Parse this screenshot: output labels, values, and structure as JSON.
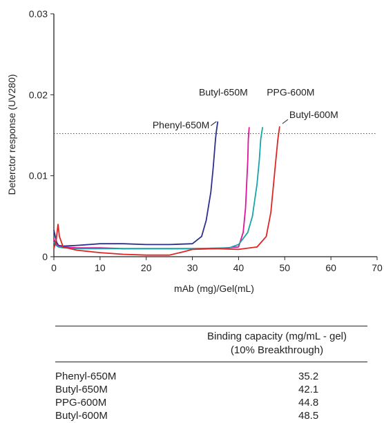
{
  "chart_data": {
    "type": "line",
    "xlabel": "mAb (mg)/Gel(mL)",
    "ylabel": "Deterctor response (UV280)",
    "xlim": [
      0,
      70
    ],
    "ylim": [
      0,
      0.03
    ],
    "xticks": [
      0,
      10,
      20,
      30,
      40,
      50,
      60,
      70
    ],
    "yticks": [
      0,
      0.01,
      0.02,
      0.03
    ],
    "ytick_labels": [
      "0",
      "0.01",
      "0.02",
      "0.03"
    ],
    "grid": false,
    "reference_line": {
      "y": 0.0152,
      "style": "dotted"
    },
    "series": [
      {
        "name": "Phenyl-650M",
        "color": "#2b2f8f",
        "x": [
          0,
          0.3,
          0.6,
          1,
          2,
          5,
          10,
          15,
          20,
          25,
          30,
          32,
          33,
          34,
          34.5,
          35,
          35.2,
          35.5
        ],
        "y": [
          0.0033,
          0.0025,
          0.0018,
          0.0014,
          0.0013,
          0.0014,
          0.0016,
          0.0016,
          0.0015,
          0.0015,
          0.0016,
          0.0025,
          0.0045,
          0.008,
          0.011,
          0.0145,
          0.0155,
          0.0167
        ]
      },
      {
        "name": "Butyl-650M",
        "color": "#e0139a",
        "x": [
          0,
          0.3,
          0.6,
          1,
          2,
          5,
          10,
          15,
          20,
          25,
          30,
          35,
          40,
          41,
          41.5,
          42,
          42.1,
          42.3
        ],
        "y": [
          0.0022,
          0.0018,
          0.0015,
          0.0013,
          0.0012,
          0.0011,
          0.0011,
          0.001,
          0.001,
          0.001,
          0.001,
          0.001,
          0.0012,
          0.003,
          0.006,
          0.012,
          0.0145,
          0.016
        ]
      },
      {
        "name": "PPG-600M",
        "color": "#17a3a8",
        "x": [
          0,
          0.5,
          1,
          2,
          5,
          10,
          20,
          30,
          38,
          40,
          42,
          43,
          44,
          44.5,
          44.8,
          45.2
        ],
        "y": [
          0.0018,
          0.0014,
          0.0012,
          0.0011,
          0.001,
          0.001,
          0.001,
          0.001,
          0.0011,
          0.0015,
          0.003,
          0.005,
          0.009,
          0.012,
          0.0145,
          0.016
        ]
      },
      {
        "name": "Butyl-600M",
        "color": "#e02424",
        "x": [
          0,
          0.5,
          0.9,
          1.2,
          2,
          5,
          10,
          15,
          20,
          25,
          28,
          30,
          35,
          40,
          44,
          46,
          47,
          48,
          48.5,
          48.9
        ],
        "y": [
          0.001,
          0.002,
          0.004,
          0.0025,
          0.0012,
          0.0008,
          0.0005,
          0.0003,
          0.0002,
          0.0002,
          0.0006,
          0.0009,
          0.001,
          0.0009,
          0.0012,
          0.0025,
          0.0055,
          0.0115,
          0.0145,
          0.0161
        ]
      }
    ],
    "annotations": [
      {
        "text": "Phenyl-650M",
        "series": 0
      },
      {
        "text": "Butyl-650M",
        "series": 1
      },
      {
        "text": "PPG-600M",
        "series": 2
      },
      {
        "text": "Butyl-600M",
        "series": 3
      }
    ]
  },
  "table": {
    "header_line1": "Binding capacity (mg/mL - gel)",
    "header_line2": "(10% Breakthrough)",
    "rows": [
      {
        "name": "Phenyl-650M",
        "value": "35.2"
      },
      {
        "name": "Butyl-650M",
        "value": "42.1"
      },
      {
        "name": "PPG-600M",
        "value": "44.8"
      },
      {
        "name": "Butyl-600M",
        "value": "48.5"
      }
    ]
  }
}
